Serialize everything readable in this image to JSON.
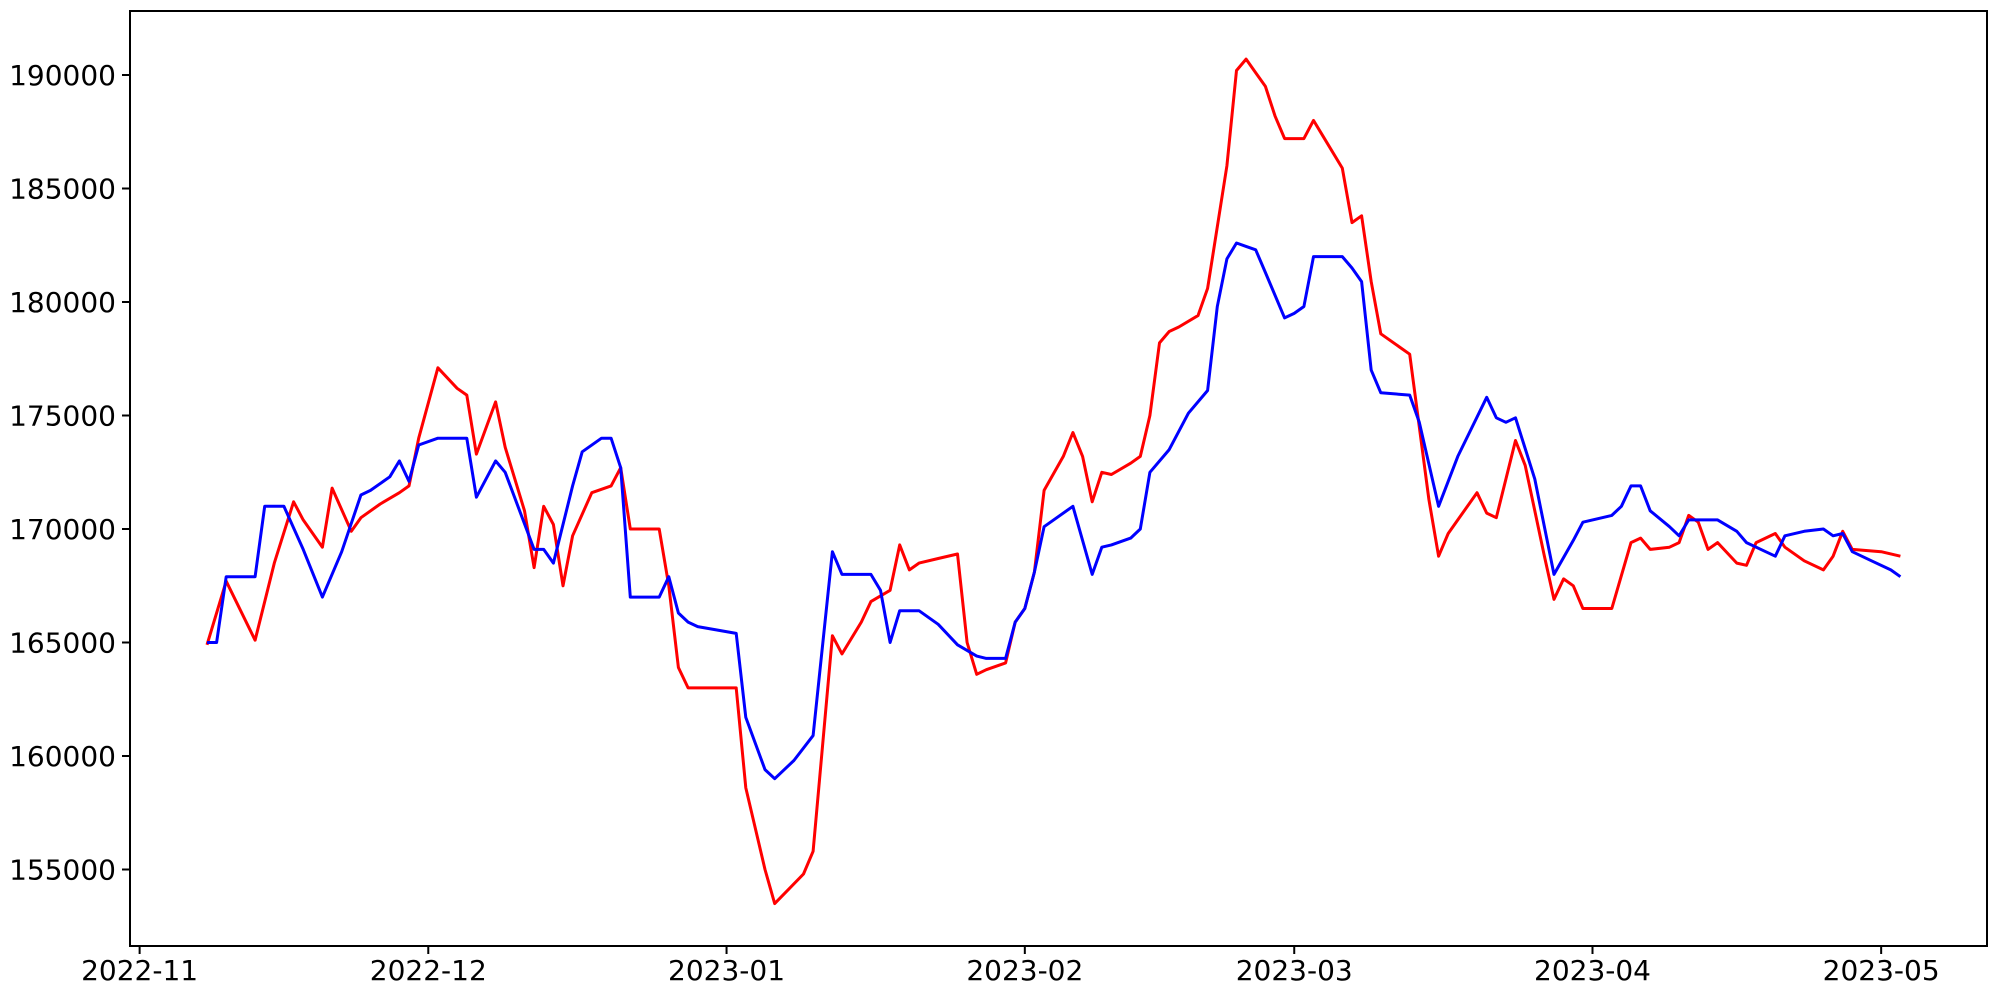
{
  "chart_data": {
    "type": "line",
    "title": "",
    "xlabel": "",
    "ylabel": "",
    "grid": false,
    "legend": "none",
    "background_color": "#ffffff",
    "axis_color": "#000000",
    "xlim_dates": [
      "2022-10-31",
      "2023-05-12"
    ],
    "ylim": [
      151630,
      192820
    ],
    "x_ticks": [
      {
        "date": "2022-11-01",
        "label": "2022-11"
      },
      {
        "date": "2022-12-01",
        "label": "2022-12"
      },
      {
        "date": "2023-01-01",
        "label": "2023-01"
      },
      {
        "date": "2023-02-01",
        "label": "2023-02"
      },
      {
        "date": "2023-03-01",
        "label": "2023-03"
      },
      {
        "date": "2023-04-01",
        "label": "2023-04"
      },
      {
        "date": "2023-05-01",
        "label": "2023-05"
      }
    ],
    "y_ticks": [
      155000,
      160000,
      165000,
      170000,
      175000,
      180000,
      185000,
      190000
    ],
    "series": [
      {
        "name": "series_1_red",
        "color": "#ff0000",
        "points": [
          [
            "2022-11-08",
            164900
          ],
          [
            "2022-11-10",
            167700
          ],
          [
            "2022-11-13",
            165100
          ],
          [
            "2022-11-15",
            168500
          ],
          [
            "2022-11-17",
            171200
          ],
          [
            "2022-11-18",
            170400
          ],
          [
            "2022-11-20",
            169200
          ],
          [
            "2022-11-21",
            171800
          ],
          [
            "2022-11-23",
            169900
          ],
          [
            "2022-11-24",
            170500
          ],
          [
            "2022-11-26",
            171100
          ],
          [
            "2022-11-28",
            171600
          ],
          [
            "2022-11-29",
            171900
          ],
          [
            "2022-11-30",
            174000
          ],
          [
            "2022-12-02",
            177100
          ],
          [
            "2022-12-04",
            176200
          ],
          [
            "2022-12-05",
            175900
          ],
          [
            "2022-12-06",
            173300
          ],
          [
            "2022-12-08",
            175600
          ],
          [
            "2022-12-09",
            173600
          ],
          [
            "2022-12-11",
            170800
          ],
          [
            "2022-12-12",
            168300
          ],
          [
            "2022-12-13",
            171000
          ],
          [
            "2022-12-14",
            170200
          ],
          [
            "2022-12-15",
            167500
          ],
          [
            "2022-12-16",
            169700
          ],
          [
            "2022-12-18",
            171600
          ],
          [
            "2022-12-20",
            171900
          ],
          [
            "2022-12-21",
            172700
          ],
          [
            "2022-12-22",
            170000
          ],
          [
            "2022-12-25",
            170000
          ],
          [
            "2022-12-26",
            167500
          ],
          [
            "2022-12-27",
            163900
          ],
          [
            "2022-12-28",
            163000
          ],
          [
            "2023-01-02",
            163000
          ],
          [
            "2023-01-03",
            158600
          ],
          [
            "2023-01-05",
            155000
          ],
          [
            "2023-01-06",
            153500
          ],
          [
            "2023-01-09",
            154800
          ],
          [
            "2023-01-10",
            155800
          ],
          [
            "2023-01-12",
            165300
          ],
          [
            "2023-01-13",
            164500
          ],
          [
            "2023-01-15",
            165900
          ],
          [
            "2023-01-16",
            166800
          ],
          [
            "2023-01-18",
            167300
          ],
          [
            "2023-01-19",
            169300
          ],
          [
            "2023-01-20",
            168200
          ],
          [
            "2023-01-21",
            168500
          ],
          [
            "2023-01-23",
            168700
          ],
          [
            "2023-01-25",
            168900
          ],
          [
            "2023-01-26",
            165000
          ],
          [
            "2023-01-27",
            163600
          ],
          [
            "2023-01-28",
            163800
          ],
          [
            "2023-01-30",
            164100
          ],
          [
            "2023-01-31",
            165900
          ],
          [
            "2023-02-01",
            166500
          ],
          [
            "2023-02-02",
            168100
          ],
          [
            "2023-02-03",
            171700
          ],
          [
            "2023-02-05",
            173200
          ],
          [
            "2023-02-06",
            174250
          ],
          [
            "2023-02-07",
            173200
          ],
          [
            "2023-02-08",
            171200
          ],
          [
            "2023-02-09",
            172500
          ],
          [
            "2023-02-10",
            172400
          ],
          [
            "2023-02-12",
            172900
          ],
          [
            "2023-02-13",
            173200
          ],
          [
            "2023-02-14",
            175000
          ],
          [
            "2023-02-15",
            178200
          ],
          [
            "2023-02-16",
            178700
          ],
          [
            "2023-02-17",
            178900
          ],
          [
            "2023-02-19",
            179400
          ],
          [
            "2023-02-20",
            180600
          ],
          [
            "2023-02-22",
            186000
          ],
          [
            "2023-02-23",
            190200
          ],
          [
            "2023-02-24",
            190700
          ],
          [
            "2023-02-25",
            190100
          ],
          [
            "2023-02-26",
            189500
          ],
          [
            "2023-02-27",
            188200
          ],
          [
            "2023-02-28",
            187200
          ],
          [
            "2023-03-02",
            187200
          ],
          [
            "2023-03-03",
            188000
          ],
          [
            "2023-03-04",
            187300
          ],
          [
            "2023-03-06",
            185900
          ],
          [
            "2023-03-07",
            183500
          ],
          [
            "2023-03-08",
            183800
          ],
          [
            "2023-03-09",
            180900
          ],
          [
            "2023-03-10",
            178600
          ],
          [
            "2023-03-13",
            177700
          ],
          [
            "2023-03-15",
            171300
          ],
          [
            "2023-03-16",
            168800
          ],
          [
            "2023-03-17",
            169800
          ],
          [
            "2023-03-18",
            170400
          ],
          [
            "2023-03-20",
            171600
          ],
          [
            "2023-03-21",
            170700
          ],
          [
            "2023-03-22",
            170500
          ],
          [
            "2023-03-24",
            173900
          ],
          [
            "2023-03-25",
            172800
          ],
          [
            "2023-03-26",
            170800
          ],
          [
            "2023-03-27",
            168800
          ],
          [
            "2023-03-28",
            166900
          ],
          [
            "2023-03-29",
            167800
          ],
          [
            "2023-03-30",
            167500
          ],
          [
            "2023-03-31",
            166500
          ],
          [
            "2023-04-03",
            166500
          ],
          [
            "2023-04-05",
            169400
          ],
          [
            "2023-04-06",
            169600
          ],
          [
            "2023-04-07",
            169100
          ],
          [
            "2023-04-09",
            169200
          ],
          [
            "2023-04-10",
            169400
          ],
          [
            "2023-04-11",
            170600
          ],
          [
            "2023-04-12",
            170300
          ],
          [
            "2023-04-13",
            169100
          ],
          [
            "2023-04-14",
            169400
          ],
          [
            "2023-04-16",
            168500
          ],
          [
            "2023-04-17",
            168400
          ],
          [
            "2023-04-18",
            169400
          ],
          [
            "2023-04-20",
            169800
          ],
          [
            "2023-04-21",
            169200
          ],
          [
            "2023-04-23",
            168600
          ],
          [
            "2023-04-25",
            168200
          ],
          [
            "2023-04-26",
            168800
          ],
          [
            "2023-04-27",
            169900
          ],
          [
            "2023-04-28",
            169100
          ],
          [
            "2023-05-01",
            169000
          ],
          [
            "2023-05-03",
            168800
          ]
        ]
      },
      {
        "name": "series_2_blue",
        "color": "#0000ff",
        "points": [
          [
            "2022-11-08",
            165000
          ],
          [
            "2022-11-09",
            165000
          ],
          [
            "2022-11-10",
            167900
          ],
          [
            "2022-11-13",
            167900
          ],
          [
            "2022-11-14",
            171000
          ],
          [
            "2022-11-16",
            171000
          ],
          [
            "2022-11-18",
            169100
          ],
          [
            "2022-11-20",
            167000
          ],
          [
            "2022-11-22",
            169000
          ],
          [
            "2022-11-24",
            171500
          ],
          [
            "2022-11-25",
            171700
          ],
          [
            "2022-11-27",
            172300
          ],
          [
            "2022-11-28",
            173000
          ],
          [
            "2022-11-29",
            172100
          ],
          [
            "2022-11-30",
            173700
          ],
          [
            "2022-12-02",
            174000
          ],
          [
            "2022-12-05",
            174000
          ],
          [
            "2022-12-06",
            171400
          ],
          [
            "2022-12-08",
            173000
          ],
          [
            "2022-12-09",
            172500
          ],
          [
            "2022-12-12",
            169100
          ],
          [
            "2022-12-13",
            169100
          ],
          [
            "2022-12-14",
            168500
          ],
          [
            "2022-12-16",
            171900
          ],
          [
            "2022-12-17",
            173400
          ],
          [
            "2022-12-19",
            174000
          ],
          [
            "2022-12-20",
            174000
          ],
          [
            "2022-12-21",
            172700
          ],
          [
            "2022-12-22",
            167000
          ],
          [
            "2022-12-25",
            167000
          ],
          [
            "2022-12-26",
            167900
          ],
          [
            "2022-12-27",
            166300
          ],
          [
            "2022-12-28",
            165900
          ],
          [
            "2022-12-29",
            165700
          ],
          [
            "2023-01-02",
            165400
          ],
          [
            "2023-01-03",
            161700
          ],
          [
            "2023-01-05",
            159400
          ],
          [
            "2023-01-06",
            159000
          ],
          [
            "2023-01-08",
            159800
          ],
          [
            "2023-01-10",
            160900
          ],
          [
            "2023-01-12",
            169000
          ],
          [
            "2023-01-13",
            168000
          ],
          [
            "2023-01-16",
            168000
          ],
          [
            "2023-01-17",
            167300
          ],
          [
            "2023-01-18",
            165000
          ],
          [
            "2023-01-19",
            166400
          ],
          [
            "2023-01-21",
            166400
          ],
          [
            "2023-01-23",
            165800
          ],
          [
            "2023-01-25",
            164900
          ],
          [
            "2023-01-27",
            164400
          ],
          [
            "2023-01-28",
            164300
          ],
          [
            "2023-01-30",
            164300
          ],
          [
            "2023-01-31",
            165900
          ],
          [
            "2023-02-01",
            166500
          ],
          [
            "2023-02-02",
            168100
          ],
          [
            "2023-02-03",
            170100
          ],
          [
            "2023-02-06",
            171000
          ],
          [
            "2023-02-08",
            168000
          ],
          [
            "2023-02-09",
            169200
          ],
          [
            "2023-02-10",
            169300
          ],
          [
            "2023-02-12",
            169600
          ],
          [
            "2023-02-13",
            170000
          ],
          [
            "2023-02-14",
            172500
          ],
          [
            "2023-02-16",
            173500
          ],
          [
            "2023-02-18",
            175100
          ],
          [
            "2023-02-20",
            176100
          ],
          [
            "2023-02-21",
            179800
          ],
          [
            "2023-02-22",
            181900
          ],
          [
            "2023-02-23",
            182600
          ],
          [
            "2023-02-24",
            182450
          ],
          [
            "2023-02-25",
            182300
          ],
          [
            "2023-02-26",
            181300
          ],
          [
            "2023-02-28",
            179300
          ],
          [
            "2023-03-01",
            179500
          ],
          [
            "2023-03-02",
            179800
          ],
          [
            "2023-03-03",
            182000
          ],
          [
            "2023-03-06",
            182000
          ],
          [
            "2023-03-07",
            181500
          ],
          [
            "2023-03-08",
            180900
          ],
          [
            "2023-03-09",
            177000
          ],
          [
            "2023-03-10",
            176000
          ],
          [
            "2023-03-13",
            175900
          ],
          [
            "2023-03-14",
            174700
          ],
          [
            "2023-03-16",
            171000
          ],
          [
            "2023-03-18",
            173200
          ],
          [
            "2023-03-21",
            175800
          ],
          [
            "2023-03-22",
            174900
          ],
          [
            "2023-03-23",
            174700
          ],
          [
            "2023-03-24",
            174900
          ],
          [
            "2023-03-26",
            172200
          ],
          [
            "2023-03-28",
            168000
          ],
          [
            "2023-03-30",
            169500
          ],
          [
            "2023-03-31",
            170300
          ],
          [
            "2023-04-03",
            170600
          ],
          [
            "2023-04-04",
            171000
          ],
          [
            "2023-04-05",
            171900
          ],
          [
            "2023-04-06",
            171900
          ],
          [
            "2023-04-07",
            170800
          ],
          [
            "2023-04-09",
            170100
          ],
          [
            "2023-04-10",
            169700
          ],
          [
            "2023-04-11",
            170400
          ],
          [
            "2023-04-14",
            170400
          ],
          [
            "2023-04-16",
            169900
          ],
          [
            "2023-04-17",
            169400
          ],
          [
            "2023-04-19",
            169000
          ],
          [
            "2023-04-20",
            168800
          ],
          [
            "2023-04-21",
            169700
          ],
          [
            "2023-04-23",
            169900
          ],
          [
            "2023-04-25",
            170000
          ],
          [
            "2023-04-26",
            169700
          ],
          [
            "2023-04-27",
            169800
          ],
          [
            "2023-04-28",
            169000
          ],
          [
            "2023-04-30",
            168600
          ],
          [
            "2023-05-02",
            168200
          ],
          [
            "2023-05-03",
            167900
          ]
        ]
      }
    ]
  }
}
